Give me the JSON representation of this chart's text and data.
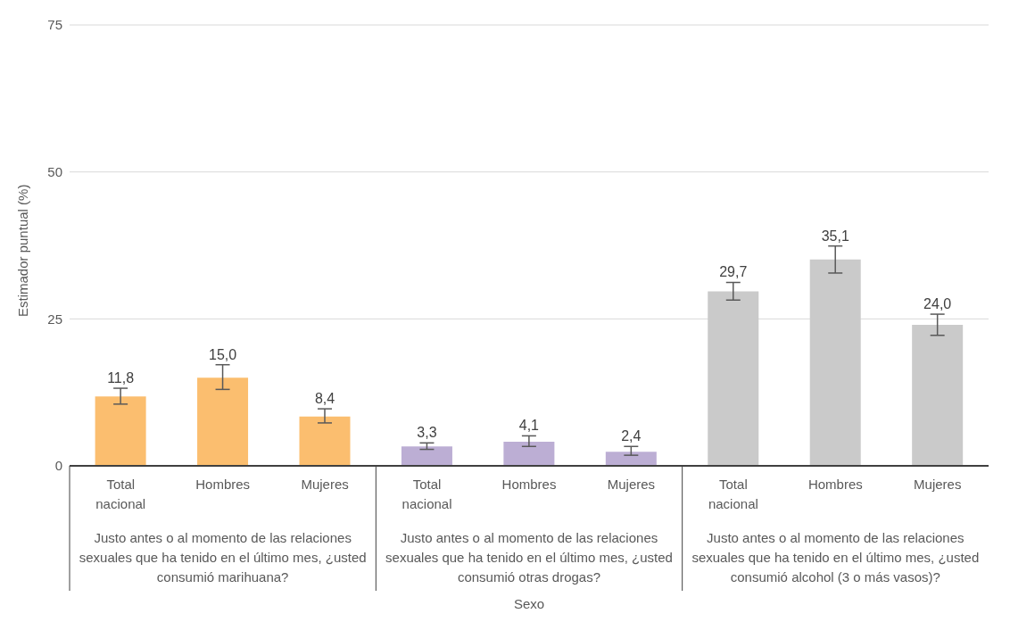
{
  "chart_data": {
    "type": "bar",
    "ylabel": "Estimador puntual (%)",
    "categories": [
      "Total nacional",
      "Hombres",
      "Mujeres",
      "Total nacional",
      "Hombres",
      "Mujeres",
      "Total nacional",
      "Hombres",
      "Mujeres"
    ],
    "values": [
      11.8,
      15.0,
      8.4,
      3.3,
      4.1,
      2.4,
      29.7,
      35.1,
      24.0
    ],
    "colors": [
      "#fbbe6f",
      "#fbbe6f",
      "#fbbe6f",
      "#bcaed4",
      "#bcaed4",
      "#bcaed4",
      "#cacaca",
      "#cacaca",
      "#cacaca"
    ],
    "errors": [
      [
        10.5,
        13.2
      ],
      [
        13.0,
        17.2
      ],
      [
        7.3,
        9.7
      ],
      [
        2.8,
        3.9
      ],
      [
        3.3,
        5.1
      ],
      [
        1.8,
        3.3
      ],
      [
        28.2,
        31.2
      ],
      [
        32.8,
        37.4
      ],
      [
        22.2,
        25.8
      ]
    ],
    "value_labels": [
      "11,8",
      "15,0",
      "8,4",
      "3,3",
      "4,1",
      "2,4",
      "29,7",
      "35,1",
      "24,0"
    ],
    "annotations": [
      "Justo antes o al momento de las relaciones sexuales que ha tenido en el último mes, ¿usted consumió marihuana?",
      "Justo antes o al momento de las relaciones sexuales que ha tenido en el último mes, ¿usted consumió otras drogas?",
      "Justo antes o al momento de las relaciones sexuales que ha tenido en el último mes, ¿usted consumió alcohol (3 o más vasos)?",
      "Sexo"
    ],
    "ylim": [
      0,
      75
    ],
    "yticks": [
      0,
      25,
      50,
      75
    ],
    "grid": "y",
    "legend": false
  }
}
